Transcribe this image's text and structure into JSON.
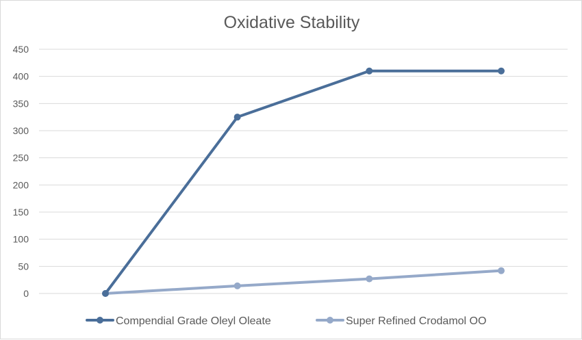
{
  "chart_data": {
    "type": "line",
    "title": "Oxidative Stability",
    "xlabel": "",
    "ylabel": "",
    "categories": [
      "",
      "",
      "",
      ""
    ],
    "ylim": [
      0,
      450
    ],
    "y_ticks": [
      0,
      50,
      100,
      150,
      200,
      250,
      300,
      350,
      400,
      450
    ],
    "grid": true,
    "legend_position": "bottom",
    "series": [
      {
        "name": "Compendial Grade Oleyl Oleate",
        "values": [
          0,
          325,
          410,
          410
        ],
        "color": "#4a6e99"
      },
      {
        "name": "Super Refined Crodamol OO",
        "values": [
          0,
          14,
          27,
          42
        ],
        "color": "#95a9c9"
      }
    ]
  }
}
